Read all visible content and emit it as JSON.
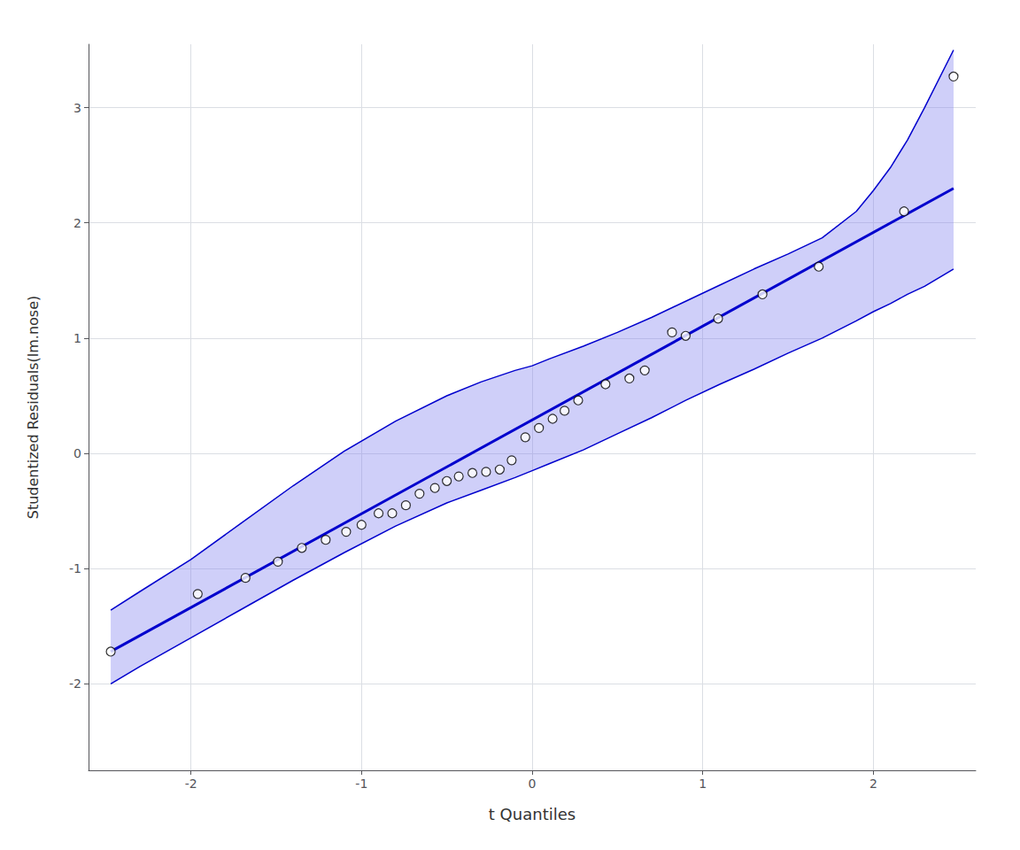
{
  "chart_data": {
    "type": "scatter",
    "xlabel": "t Quantiles",
    "ylabel": "Studentized Residuals(lm.nose)",
    "xlim": [
      -2.6,
      2.6
    ],
    "ylim": [
      -2.75,
      3.55
    ],
    "xticks": [
      -2,
      -1,
      0,
      1,
      2
    ],
    "yticks": [
      -2,
      -1,
      0,
      1,
      2,
      3
    ],
    "grid": true,
    "series": [
      {
        "type": "band",
        "x": [
          -2.47,
          -2.3,
          -2.0,
          -1.7,
          -1.4,
          -1.1,
          -0.8,
          -0.5,
          -0.3,
          -0.1,
          0.0,
          0.1,
          0.3,
          0.5,
          0.7,
          0.9,
          1.1,
          1.3,
          1.5,
          1.7,
          1.9,
          2.0,
          2.1,
          2.2,
          2.3,
          2.47
        ],
        "lower": [
          -2.0,
          -1.85,
          -1.6,
          -1.35,
          -1.1,
          -0.86,
          -0.63,
          -0.43,
          -0.32,
          -0.21,
          -0.15,
          -0.09,
          0.03,
          0.17,
          0.31,
          0.46,
          0.6,
          0.73,
          0.87,
          1.0,
          1.15,
          1.23,
          1.3,
          1.38,
          1.45,
          1.6
        ],
        "upper": [
          -1.36,
          -1.2,
          -0.92,
          -0.6,
          -0.28,
          0.02,
          0.28,
          0.5,
          0.62,
          0.72,
          0.76,
          0.82,
          0.93,
          1.05,
          1.18,
          1.32,
          1.46,
          1.6,
          1.73,
          1.87,
          2.1,
          2.28,
          2.48,
          2.72,
          3.0,
          3.5
        ],
        "color": "#8080EE"
      },
      {
        "type": "line",
        "x": [
          -2.47,
          -2.3,
          -2.0,
          -1.7,
          -1.4,
          -1.1,
          -0.8,
          -0.5,
          -0.3,
          -0.1,
          0.0,
          0.1,
          0.3,
          0.5,
          0.7,
          0.9,
          1.1,
          1.3,
          1.5,
          1.7,
          1.9,
          2.0,
          2.1,
          2.2,
          2.3,
          2.47
        ],
        "values": [
          -1.36,
          -1.2,
          -0.92,
          -0.6,
          -0.28,
          0.02,
          0.28,
          0.5,
          0.62,
          0.72,
          0.76,
          0.82,
          0.93,
          1.05,
          1.18,
          1.32,
          1.46,
          1.6,
          1.73,
          1.87,
          2.1,
          2.28,
          2.48,
          2.72,
          3.0,
          3.5
        ],
        "color": "#0000CD"
      },
      {
        "type": "line",
        "x": [
          -2.47,
          -2.3,
          -2.0,
          -1.7,
          -1.4,
          -1.1,
          -0.8,
          -0.5,
          -0.3,
          -0.1,
          0.0,
          0.1,
          0.3,
          0.5,
          0.7,
          0.9,
          1.1,
          1.3,
          1.5,
          1.7,
          1.9,
          2.0,
          2.1,
          2.2,
          2.3,
          2.47
        ],
        "values": [
          -2.0,
          -1.85,
          -1.6,
          -1.35,
          -1.1,
          -0.86,
          -0.63,
          -0.43,
          -0.32,
          -0.21,
          -0.15,
          -0.09,
          0.03,
          0.17,
          0.31,
          0.46,
          0.6,
          0.73,
          0.87,
          1.0,
          1.15,
          1.23,
          1.3,
          1.38,
          1.45,
          1.6
        ],
        "color": "#0000CD"
      },
      {
        "type": "line",
        "x": [
          -2.47,
          2.47
        ],
        "values": [
          -1.72,
          2.3
        ],
        "color": "#0000CD",
        "line_style": "thick"
      },
      {
        "type": "scatter",
        "x": [
          -2.47,
          -1.96,
          -1.68,
          -1.49,
          -1.35,
          -1.21,
          -1.09,
          -1.0,
          -0.9,
          -0.82,
          -0.74,
          -0.66,
          -0.57,
          -0.5,
          -0.43,
          -0.35,
          -0.27,
          -0.19,
          -0.12,
          -0.04,
          0.04,
          0.12,
          0.19,
          0.27,
          0.43,
          0.57,
          0.66,
          0.82,
          0.9,
          1.09,
          1.35,
          1.68,
          2.18,
          2.47
        ],
        "values": [
          -1.72,
          -1.22,
          -1.08,
          -0.94,
          -0.82,
          -0.75,
          -0.68,
          -0.62,
          -0.52,
          -0.52,
          -0.45,
          -0.35,
          -0.3,
          -0.24,
          -0.2,
          -0.17,
          -0.16,
          -0.14,
          -0.06,
          0.14,
          0.22,
          0.3,
          0.37,
          0.46,
          0.6,
          0.65,
          0.72,
          1.05,
          1.02,
          1.17,
          1.38,
          1.62,
          2.1,
          3.27
        ],
        "color": "black",
        "marker": "open_circle"
      }
    ]
  }
}
